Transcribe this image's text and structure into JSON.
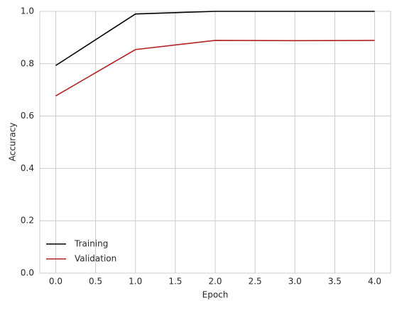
{
  "chart_data": {
    "type": "line",
    "x": [
      0,
      1,
      2,
      3,
      4
    ],
    "series": [
      {
        "name": "Training",
        "color": "#000000",
        "values": [
          0.793,
          0.99,
          1.0,
          1.0,
          1.0
        ]
      },
      {
        "name": "Validation",
        "color": "#b22222",
        "values": [
          0.677,
          0.854,
          0.889,
          0.888,
          0.889
        ]
      }
    ],
    "xlabel": "Epoch",
    "ylabel": "Accuracy",
    "xlim": [
      -0.2,
      4.2
    ],
    "ylim": [
      0,
      1
    ],
    "xticks": [
      {
        "value": 0,
        "label": "0.0"
      },
      {
        "value": 0.5,
        "label": "0.5"
      },
      {
        "value": 1,
        "label": "1.0"
      },
      {
        "value": 1.5,
        "label": "1.5"
      },
      {
        "value": 2,
        "label": "2.0"
      },
      {
        "value": 2.5,
        "label": "2.5"
      },
      {
        "value": 3,
        "label": "3.0"
      },
      {
        "value": 3.5,
        "label": "3.5"
      },
      {
        "value": 4,
        "label": "4.0"
      }
    ],
    "yticks": [
      {
        "value": 0,
        "label": "0.0"
      },
      {
        "value": 0.2,
        "label": "0.2"
      },
      {
        "value": 0.4,
        "label": "0.4"
      },
      {
        "value": 0.6,
        "label": "0.6"
      },
      {
        "value": 0.8,
        "label": "0.8"
      },
      {
        "value": 1,
        "label": "1.0"
      }
    ],
    "grid": true,
    "legend": "lower left"
  }
}
